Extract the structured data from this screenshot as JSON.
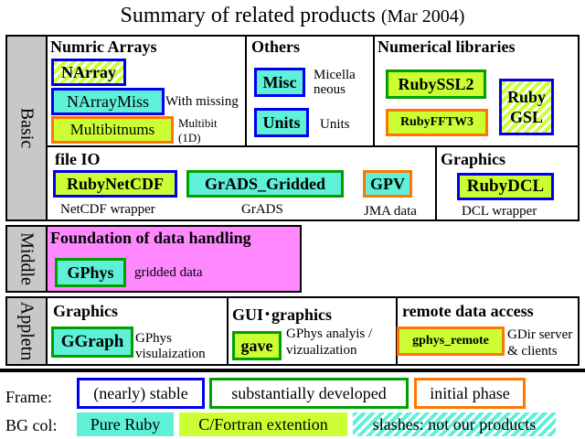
{
  "title": {
    "main": "Summary of related products",
    "date": "(Mar 2004)"
  },
  "tiers": {
    "basic": "Basic",
    "middle": "Middle",
    "appl": "Appletn"
  },
  "basic": {
    "numric": {
      "header": "Numric Arrays",
      "narray": "NArray",
      "narraymiss": "NArrayMiss",
      "narraymiss_desc": "With missing",
      "multibit": "Multibitnums",
      "multibit_desc": [
        "Multibit",
        "(1D)"
      ]
    },
    "others": {
      "header": "Others",
      "misc": "Misc",
      "misc_desc": [
        "Micella",
        "neous"
      ],
      "units": "Units",
      "units_desc": "Units"
    },
    "numlib": {
      "header": "Numerical libraries",
      "rubyssl2": "RubySSL2",
      "rubyfftw3": "RubyFFTW3",
      "rubygsl": [
        "Ruby",
        "GSL"
      ]
    },
    "fileio": {
      "header": "file IO",
      "netcdf": "RubyNetCDF",
      "netcdf_desc": "NetCDF wrapper",
      "grads": "GrADS_Gridded",
      "grads_desc": "GrADS",
      "gpv": "GPV",
      "gpv_desc": "JMA data"
    },
    "graphics": {
      "header": "Graphics",
      "dcl": "RubyDCL",
      "dcl_desc": "DCL wrapper"
    }
  },
  "middle": {
    "header": "Foundation of data handling",
    "gphys": "GPhys",
    "gphys_desc": "gridded data"
  },
  "appl": {
    "graphics": {
      "header": "Graphics",
      "ggraph": "GGraph",
      "ggraph_desc": [
        "GPhys",
        "visulaization"
      ]
    },
    "gui": {
      "header": "GUI･graphics",
      "gave": "gave",
      "gave_desc": [
        "GPhys analyis /",
        "vizualization"
      ]
    },
    "remote": {
      "header": "remote data access",
      "gphys_remote": "gphys_remote",
      "remote_desc": [
        "GDir server",
        "& clients"
      ]
    }
  },
  "legend": {
    "frame_label": "Frame:",
    "frame_items": [
      "(nearly) stable",
      "substantially developed",
      "initial phase"
    ],
    "bg_label": "BG col:",
    "bg_items": [
      "Pure Ruby",
      "C/Fortran extention",
      "slashes: not our products"
    ]
  },
  "colors": {
    "stable": "#0000ee",
    "developed": "#00a000",
    "initial": "#ff7700",
    "pure_ruby": "#5ff0d8",
    "c_fortran": "#ccff33",
    "middle_bg": "#ff88ff"
  }
}
